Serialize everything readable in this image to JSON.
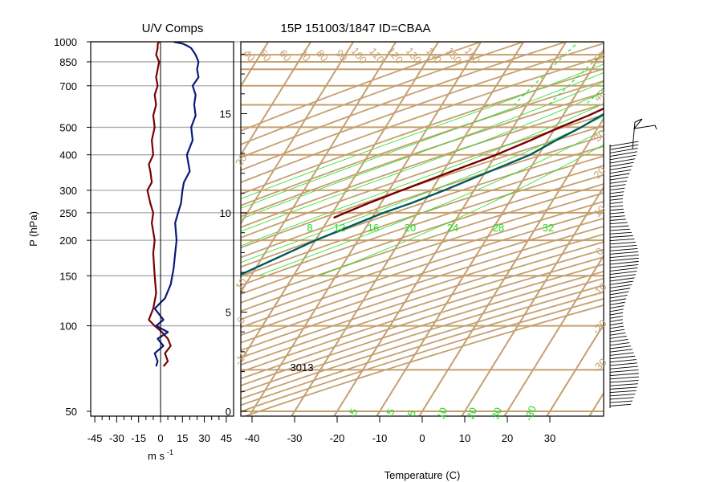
{
  "chart_data": [
    {
      "type": "line",
      "title": "U/V Comps",
      "xlabel": "m s",
      "xlabel_exp": "-1",
      "ylabel": "P (hPa)",
      "y_scale": "log",
      "ylim": [
        1000,
        50
      ],
      "xlim": [
        -50,
        50
      ],
      "x_ticks": [
        -45,
        -30,
        -15,
        0,
        15,
        30,
        45
      ],
      "x_tick_labels": [
        "-45",
        "-30",
        "-15",
        "0",
        "15",
        "30",
        "45"
      ],
      "y_ticks": [
        1000,
        850,
        700,
        500,
        400,
        300,
        250,
        200,
        150,
        100,
        50
      ],
      "y_tick_labels": [
        "1000",
        "850",
        "700",
        "500",
        "400",
        "300",
        "250",
        "200",
        "150",
        "100",
        "50"
      ],
      "colors": {
        "u": "#7a0000",
        "v": "#0a1a7a",
        "grid": "#a9a9a9"
      },
      "series": [
        {
          "key": "u",
          "p": [
            1000,
            980,
            950,
            900,
            850,
            800,
            750,
            700,
            650,
            600,
            550,
            500,
            450,
            400,
            370,
            350,
            320,
            300,
            270,
            250,
            230,
            200,
            180,
            150,
            130,
            115,
            105,
            100,
            95,
            90,
            85,
            80,
            75,
            72
          ],
          "values": [
            -1,
            -2,
            -2,
            -3,
            -1,
            -2,
            -3,
            -2,
            -4,
            -3,
            -5,
            -4,
            -6,
            -5,
            -8,
            -7,
            -6,
            -9,
            -7,
            -5,
            -6,
            -4,
            -5,
            -4,
            -3,
            -5,
            -8,
            -4,
            1,
            5,
            7,
            3,
            5,
            2
          ]
        },
        {
          "key": "v",
          "p": [
            1000,
            985,
            970,
            950,
            900,
            850,
            800,
            750,
            700,
            650,
            600,
            550,
            500,
            450,
            400,
            350,
            320,
            300,
            270,
            250,
            230,
            200,
            180,
            160,
            140,
            125,
            115,
            105,
            100,
            95,
            90,
            85,
            80,
            75,
            72
          ],
          "values": [
            9,
            15,
            18,
            21,
            24,
            26,
            25,
            26,
            22,
            24,
            23,
            24,
            21,
            22,
            18,
            20,
            16,
            15,
            14,
            12,
            10,
            11,
            10,
            9,
            7,
            3,
            -4,
            2,
            -3,
            5,
            -2,
            2,
            -4,
            -2,
            -3
          ]
        }
      ]
    },
    {
      "type": "line",
      "title": "15P 151003/1847 ID=CBAA",
      "xlabel": "Temperature (C)",
      "x_ticks": [
        -40,
        -30,
        -20,
        -10,
        0,
        10,
        20,
        30
      ],
      "x_tick_labels": [
        "-40",
        "-30",
        "-20",
        "-10",
        "0",
        "10",
        "20",
        "30"
      ],
      "height_ticks_km": [
        0,
        5,
        10,
        15
      ],
      "height_tick_labels": [
        "0",
        "5",
        "10",
        "15"
      ],
      "annotation": "3013",
      "dry_adiabat_labels": [
        "40",
        "50",
        "60",
        "70",
        "80",
        "90",
        "100",
        "110",
        "120",
        "130",
        "140",
        "150",
        "160"
      ],
      "mixing_ratio_labels": [
        "8",
        "12",
        "16",
        "20",
        "24",
        "28",
        "32"
      ],
      "moist_adiabat_labels": [
        "50",
        "40",
        "30",
        "20",
        "10",
        "0",
        "-10",
        "-20",
        "-30"
      ],
      "bottom_labels": [
        "-5",
        "-5",
        "5",
        "10",
        "20",
        "30",
        "-30"
      ],
      "left_labels": [
        "20",
        "10",
        "0",
        "-10"
      ],
      "colors": {
        "temperature": "#7a0000",
        "dewpoint": "#005a5a",
        "isobar": "#c4a070",
        "green": "#22dd22"
      },
      "series": [
        {
          "key": "temperature",
          "p": [
            1000,
            975,
            950,
            925,
            900,
            850,
            800,
            750,
            700,
            650,
            600,
            550,
            500,
            450,
            400,
            350,
            300,
            270,
            250,
            240
          ],
          "values": [
            26,
            25,
            23,
            22,
            20,
            17,
            14,
            11,
            8,
            4,
            0,
            -4,
            -9,
            -14,
            -20,
            -28,
            -37,
            -43,
            -47,
            -49
          ]
        },
        {
          "key": "dewpoint",
          "p": [
            1000,
            975,
            950,
            925,
            900,
            850,
            800,
            750,
            700,
            650,
            600,
            550,
            500,
            450,
            400,
            350,
            300,
            270,
            250,
            200,
            150,
            120,
            100,
            95,
            90,
            85,
            80,
            75,
            72
          ],
          "values": [
            26,
            25,
            24,
            22,
            20,
            17,
            14,
            11,
            8,
            5,
            2,
            -1,
            -4,
            -8,
            -12,
            -19,
            -27,
            -33,
            -38,
            -50,
            -63,
            -70,
            -73,
            -68,
            -65,
            -58,
            -55,
            -53,
            -52
          ]
        }
      ]
    }
  ]
}
